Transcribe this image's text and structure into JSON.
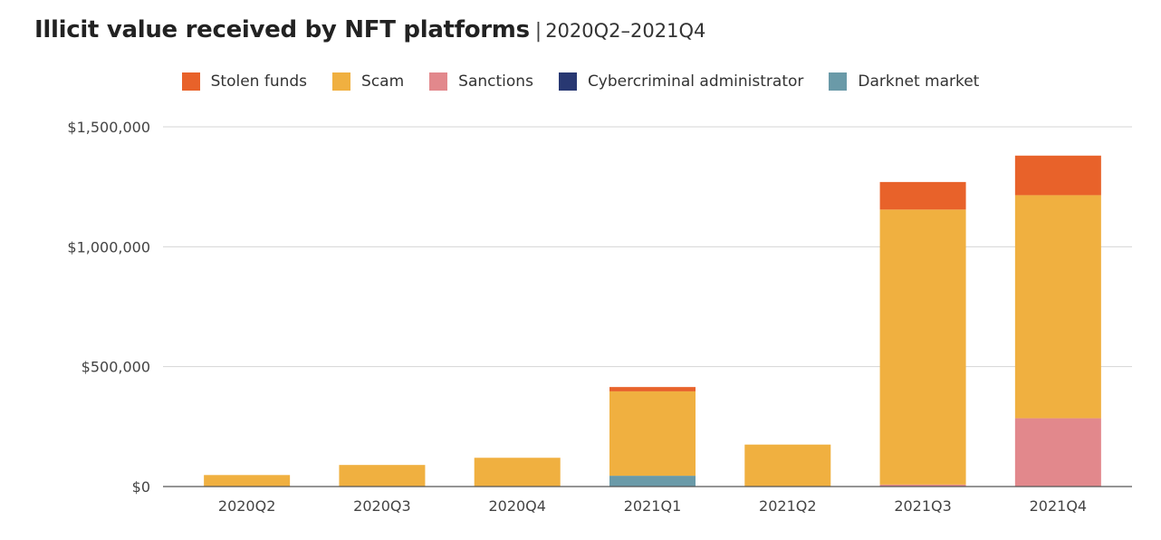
{
  "title": "Illicit value received by NFT platforms",
  "separator": "|",
  "subtitle": "2020Q2–2021Q4",
  "chart_data": {
    "type": "bar",
    "stacked": true,
    "title": "Illicit value received by NFT platforms",
    "subtitle": "2020Q2–2021Q4",
    "xlabel": "",
    "ylabel": "",
    "ylim": [
      0,
      1500000
    ],
    "yticks": [
      0,
      500000,
      1000000,
      1500000
    ],
    "ytick_labels": [
      "$0",
      "$500,000",
      "$1,000,000",
      "$1,500,000"
    ],
    "grid": true,
    "legend_position": "top-center",
    "categories": [
      "2020Q2",
      "2020Q3",
      "2020Q4",
      "2021Q1",
      "2021Q2",
      "2021Q3",
      "2021Q4"
    ],
    "series": [
      {
        "name": "Darknet market",
        "color": "#6a9aa8",
        "values": [
          0,
          0,
          0,
          45000,
          0,
          0,
          0
        ]
      },
      {
        "name": "Cybercriminal administrator",
        "color": "#283872",
        "values": [
          0,
          0,
          0,
          0,
          0,
          0,
          0
        ]
      },
      {
        "name": "Sanctions",
        "color": "#e2888c",
        "values": [
          0,
          0,
          0,
          0,
          0,
          8000,
          285000
        ]
      },
      {
        "name": "Scam",
        "color": "#f0b040",
        "values": [
          48000,
          90000,
          120000,
          352000,
          175000,
          1147000,
          930000
        ]
      },
      {
        "name": "Stolen funds",
        "color": "#e8622a",
        "values": [
          0,
          0,
          0,
          18000,
          0,
          115000,
          165000
        ]
      }
    ],
    "legend_order": [
      "Stolen funds",
      "Scam",
      "Sanctions",
      "Cybercriminal administrator",
      "Darknet market"
    ]
  }
}
